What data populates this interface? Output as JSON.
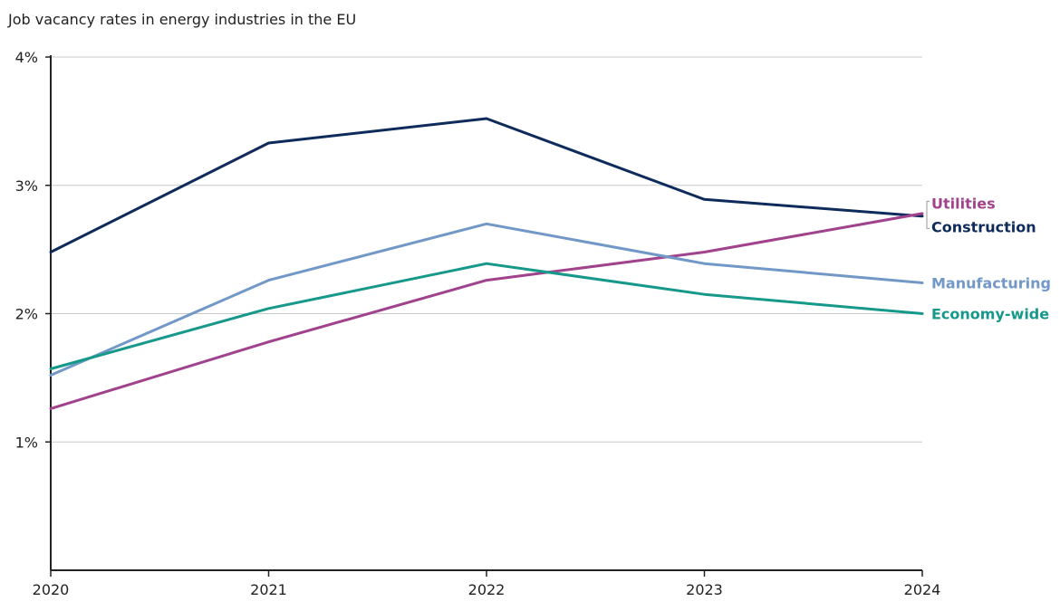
{
  "chart_data": {
    "type": "line",
    "subtitle": "Job vacancy rates in energy industries in the EU",
    "x": [
      "2020",
      "2021",
      "2022",
      "2023",
      "2024"
    ],
    "ylim": [
      0,
      4
    ],
    "yticks": [
      1,
      2,
      3,
      4
    ],
    "ytick_labels": [
      "1%",
      "2%",
      "3%",
      "4%"
    ],
    "grid": true,
    "series": [
      {
        "name": "Construction",
        "color": "#0f2b5b",
        "values": [
          2.48,
          3.33,
          3.52,
          2.89,
          2.76
        ]
      },
      {
        "name": "Utilities",
        "color": "#a0428c",
        "values": [
          1.26,
          1.78,
          2.26,
          2.48,
          2.78
        ]
      },
      {
        "name": "Manufacturing",
        "color": "#7298c7",
        "values": [
          1.52,
          2.26,
          2.7,
          2.39,
          2.24
        ]
      },
      {
        "name": "Economy-wide",
        "color": "#16988a",
        "values": [
          1.57,
          2.04,
          2.39,
          2.15,
          2.0
        ]
      }
    ]
  }
}
